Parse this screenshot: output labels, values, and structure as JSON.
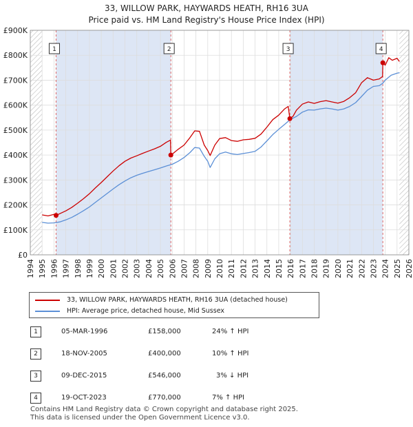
{
  "title_line1": "33, WILLOW PARK, HAYWARDS HEATH, RH16 3UA",
  "title_line2": "Price paid vs. HM Land Registry's House Price Index (HPI)",
  "chart_data": {
    "type": "line",
    "title": "33, WILLOW PARK, HAYWARDS HEATH, RH16 3UA — Price paid vs. HM Land Registry's House Price Index (HPI)",
    "xlabel": "",
    "ylabel": "",
    "xlim": [
      1994,
      2026
    ],
    "ylim": [
      0,
      900000
    ],
    "x_ticks": [
      "1994",
      "1995",
      "1996",
      "1997",
      "1998",
      "1999",
      "2000",
      "2001",
      "2002",
      "2003",
      "2004",
      "2005",
      "2006",
      "2007",
      "2008",
      "2009",
      "2010",
      "2011",
      "2012",
      "2013",
      "2014",
      "2015",
      "2016",
      "2017",
      "2018",
      "2019",
      "2020",
      "2021",
      "2022",
      "2023",
      "2024",
      "2025",
      "2026"
    ],
    "y_ticks": [
      {
        "value": 0,
        "label": "£0"
      },
      {
        "value": 100000,
        "label": "£100K"
      },
      {
        "value": 200000,
        "label": "£200K"
      },
      {
        "value": 300000,
        "label": "£300K"
      },
      {
        "value": 400000,
        "label": "£400K"
      },
      {
        "value": 500000,
        "label": "£500K"
      },
      {
        "value": 600000,
        "label": "£600K"
      },
      {
        "value": 700000,
        "label": "£700K"
      },
      {
        "value": 800000,
        "label": "£800K"
      },
      {
        "value": 900000,
        "label": "£900K"
      }
    ],
    "grid": true,
    "data_range": [
      1995.0,
      2025.2
    ],
    "colors": {
      "property": "#cc0000",
      "hpi": "#5b8fd6",
      "shade": "#dde6f5",
      "hatch": "#bbbbbb",
      "vline": "#dd6666"
    },
    "series": [
      {
        "name": "33, WILLOW PARK, HAYWARDS HEATH, RH16 3UA (detached house)",
        "color": "#cc0000",
        "x": [
          1995.0,
          1995.5,
          1996.0,
          1996.18,
          1996.5,
          1997.0,
          1997.5,
          1998.0,
          1998.5,
          1999.0,
          1999.5,
          2000.0,
          2000.5,
          2001.0,
          2001.5,
          2002.0,
          2002.5,
          2003.0,
          2003.5,
          2004.0,
          2004.5,
          2005.0,
          2005.5,
          2005.85,
          2005.88,
          2006.0,
          2006.5,
          2007.0,
          2007.5,
          2007.9,
          2008.3,
          2008.7,
          2009.0,
          2009.2,
          2009.6,
          2010.0,
          2010.5,
          2011.0,
          2011.5,
          2012.0,
          2012.5,
          2013.0,
          2013.5,
          2014.0,
          2014.5,
          2015.0,
          2015.5,
          2015.8,
          2015.94,
          2016.2,
          2016.5,
          2017.0,
          2017.5,
          2018.0,
          2018.5,
          2019.0,
          2019.5,
          2020.0,
          2020.5,
          2021.0,
          2021.5,
          2022.0,
          2022.5,
          2023.0,
          2023.5,
          2023.78,
          2023.8,
          2024.0,
          2024.3,
          2024.6,
          2025.0,
          2025.2
        ],
        "y": [
          160000,
          156000,
          162000,
          158000,
          165000,
          176000,
          190000,
          207000,
          225000,
          245000,
          268000,
          290000,
          313000,
          336000,
          357000,
          375000,
          388000,
          397000,
          407000,
          416000,
          425000,
          435000,
          451000,
          460000,
          400000,
          404000,
          423000,
          440000,
          470000,
          497000,
          495000,
          440000,
          418000,
          398000,
          440000,
          466000,
          470000,
          458000,
          455000,
          461000,
          463000,
          467000,
          484000,
          512000,
          542000,
          560000,
          585000,
          595000,
          546000,
          555000,
          580000,
          604000,
          613000,
          607000,
          614000,
          618000,
          613000,
          608000,
          615000,
          630000,
          650000,
          690000,
          710000,
          700000,
          705000,
          715000,
          770000,
          760000,
          790000,
          780000,
          788000,
          775000
        ]
      },
      {
        "name": "HPI: Average price, detached house, Mid Sussex",
        "color": "#5b8fd6",
        "x": [
          1995.0,
          1995.5,
          1996.0,
          1996.5,
          1997.0,
          1997.5,
          1998.0,
          1998.5,
          1999.0,
          1999.5,
          2000.0,
          2000.5,
          2001.0,
          2001.5,
          2002.0,
          2002.5,
          2003.0,
          2003.5,
          2004.0,
          2004.5,
          2005.0,
          2005.5,
          2006.0,
          2006.5,
          2007.0,
          2007.5,
          2007.9,
          2008.3,
          2008.7,
          2009.0,
          2009.2,
          2009.6,
          2010.0,
          2010.5,
          2011.0,
          2011.5,
          2012.0,
          2012.5,
          2013.0,
          2013.5,
          2014.0,
          2014.5,
          2015.0,
          2015.5,
          2016.0,
          2016.5,
          2017.0,
          2017.5,
          2018.0,
          2018.5,
          2019.0,
          2019.5,
          2020.0,
          2020.5,
          2021.0,
          2021.5,
          2022.0,
          2022.5,
          2023.0,
          2023.5,
          2023.8,
          2024.0,
          2024.5,
          2025.0,
          2025.2
        ],
        "y": [
          130000,
          127000,
          128000,
          132000,
          140000,
          150000,
          163000,
          177000,
          192000,
          210000,
          228000,
          246000,
          264000,
          281000,
          296000,
          309000,
          319000,
          327000,
          334000,
          341000,
          348000,
          356000,
          363000,
          375000,
          390000,
          410000,
          430000,
          428000,
          395000,
          375000,
          350000,
          385000,
          405000,
          412000,
          405000,
          402000,
          406000,
          410000,
          415000,
          432000,
          457000,
          482000,
          503000,
          523000,
          543000,
          555000,
          572000,
          581000,
          580000,
          585000,
          588000,
          585000,
          580000,
          585000,
          595000,
          610000,
          635000,
          660000,
          675000,
          678000,
          688000,
          700000,
          720000,
          728000,
          730000
        ]
      }
    ],
    "sales": [
      {
        "label": "1",
        "x": 1996.18,
        "price": 158000
      },
      {
        "label": "2",
        "x": 2005.88,
        "price": 400000
      },
      {
        "label": "3",
        "x": 2015.94,
        "price": 546000
      },
      {
        "label": "4",
        "x": 2023.8,
        "price": 770000
      }
    ]
  },
  "legend": {
    "property_label": "33, WILLOW PARK, HAYWARDS HEATH, RH16 3UA (detached house)",
    "hpi_label": "HPI: Average price, detached house, Mid Sussex"
  },
  "sales_table": [
    {
      "num": "1",
      "date": "05-MAR-1996",
      "price": "£158,000",
      "hpi": "24% ↑ HPI"
    },
    {
      "num": "2",
      "date": "18-NOV-2005",
      "price": "£400,000",
      "hpi": "10% ↑ HPI"
    },
    {
      "num": "3",
      "date": "09-DEC-2015",
      "price": "£546,000",
      "hpi": "3% ↓ HPI"
    },
    {
      "num": "4",
      "date": "19-OCT-2023",
      "price": "£770,000",
      "hpi": "7% ↑ HPI"
    }
  ],
  "footer_line1": "Contains HM Land Registry data © Crown copyright and database right 2025.",
  "footer_line2": "This data is licensed under the Open Government Licence v3.0."
}
